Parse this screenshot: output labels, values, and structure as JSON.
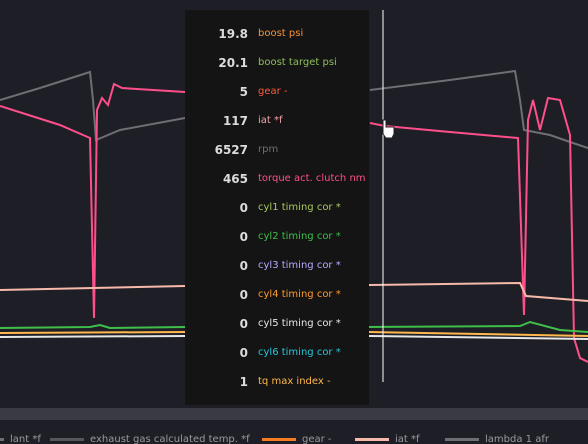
{
  "tooltip": {
    "rows": [
      {
        "value": 19.8,
        "label": "boost psi",
        "color": "#f7923a"
      },
      {
        "value": 20.1,
        "label": "boost target psi",
        "color": "#8fbf5a"
      },
      {
        "value": 5,
        "label": "gear -",
        "color": "#ff5a3a"
      },
      {
        "value": 117,
        "label": "iat *f",
        "color": "#f4a3a8"
      },
      {
        "value": 6527,
        "label": "rpm",
        "color": "#6e6e74"
      },
      {
        "value": 465,
        "label": "torque act. clutch nm",
        "color": "#ff4f8b"
      },
      {
        "value": 0,
        "label": "cyl1 timing cor *",
        "color": "#a8c85e"
      },
      {
        "value": 0,
        "label": "cyl2 timing cor *",
        "color": "#3fbf4a"
      },
      {
        "value": 0,
        "label": "cyl3 timing cor *",
        "color": "#b9a8ff"
      },
      {
        "value": 0,
        "label": "cyl4 timing cor *",
        "color": "#ff9a2e"
      },
      {
        "value": 0,
        "label": "cyl5 timing cor *",
        "color": "#e8e8e8"
      },
      {
        "value": 0,
        "label": "cyl6 timing cor *",
        "color": "#26c6da"
      },
      {
        "value": 1,
        "label": "tq max index -",
        "color": "#ffb84d"
      }
    ]
  },
  "legend": {
    "items": [
      {
        "label": "lant *f",
        "color": "#6e6e74"
      },
      {
        "label": "exhaust gas calculated temp. *f",
        "color": "#55565c"
      },
      {
        "label": "gear -",
        "color": "#f57c20"
      },
      {
        "label": "iat *f",
        "color": "#f6b9aa"
      },
      {
        "label": "lambda 1 afr",
        "color": "#6e6e74"
      }
    ]
  }
}
